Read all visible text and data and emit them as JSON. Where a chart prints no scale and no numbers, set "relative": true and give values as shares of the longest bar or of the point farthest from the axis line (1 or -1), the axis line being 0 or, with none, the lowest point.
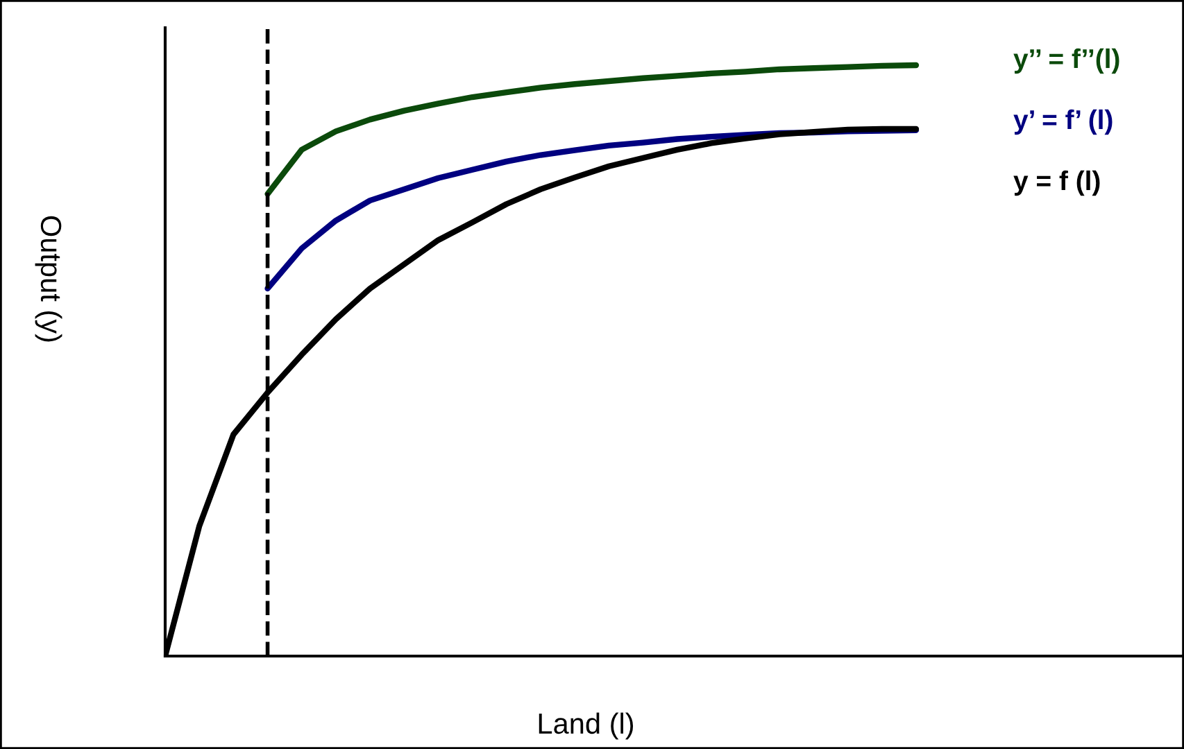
{
  "chart_data": {
    "type": "line",
    "relative": true,
    "xlabel": "Land (l)",
    "ylabel": "Output (y)",
    "marker": "none",
    "line_style": "solid",
    "categories": [
      null,
      null,
      null,
      null,
      null,
      null,
      null,
      null,
      null,
      null,
      null,
      null,
      null,
      null,
      null,
      null,
      null,
      null,
      null,
      null,
      null,
      null,
      null
    ],
    "series": [
      {
        "name": "y’’ = f’’(l)",
        "color": "#0b4a0b",
        "values": [
          null,
          null,
          null,
          0.782,
          0.857,
          0.888,
          0.908,
          0.923,
          0.935,
          0.946,
          0.954,
          0.962,
          0.968,
          0.973,
          0.978,
          0.982,
          0.986,
          0.989,
          0.993,
          0.995,
          0.997,
          0.999,
          1.0
        ]
      },
      {
        "name": "y’ = f’ (l)",
        "color": "#000080",
        "values": [
          null,
          null,
          null,
          0.622,
          0.69,
          0.737,
          0.771,
          0.79,
          0.809,
          0.823,
          0.837,
          0.848,
          0.856,
          0.864,
          0.869,
          0.875,
          0.879,
          0.882,
          0.885,
          0.886,
          0.888,
          0.889,
          0.89
        ]
      },
      {
        "name": "y = f (l)",
        "color": "#000000",
        "values": [
          0.0,
          0.22,
          0.375,
          0.446,
          0.51,
          0.57,
          0.622,
          0.663,
          0.704,
          0.734,
          0.765,
          0.79,
          0.81,
          0.829,
          0.843,
          0.857,
          0.868,
          0.876,
          0.883,
          0.887,
          0.891,
          0.892,
          0.892
        ]
      }
    ]
  }
}
